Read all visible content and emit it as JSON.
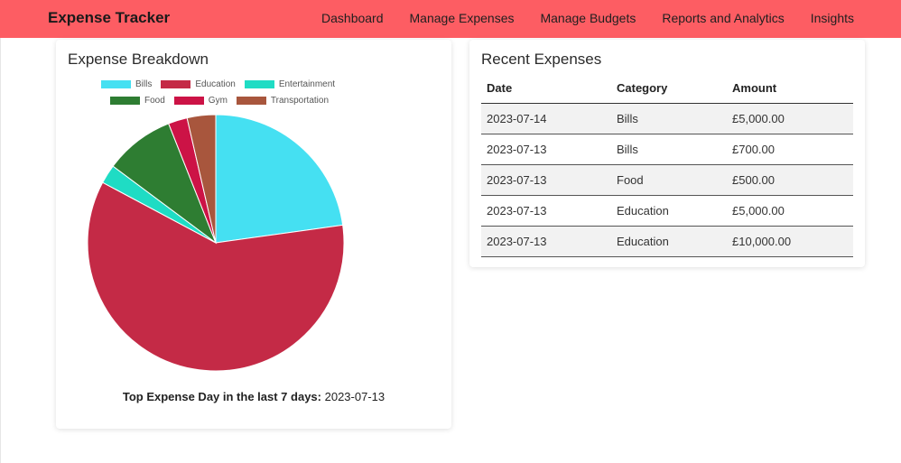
{
  "navbar": {
    "brand": "Expense Tracker",
    "links": [
      "Dashboard",
      "Manage Expenses",
      "Manage Budgets",
      "Reports and Analytics",
      "Insights"
    ],
    "background": "#fd5d63"
  },
  "breakdown": {
    "title": "Expense Breakdown",
    "top_day_label": "Top Expense Day in the last 7 days:",
    "top_day_value": "2023-07-13"
  },
  "chart_data": {
    "type": "pie",
    "title": "",
    "legend_position": "top",
    "slices": [
      {
        "label": "Bills",
        "value": 5700,
        "color": "#45e0f2"
      },
      {
        "label": "Education",
        "value": 15000,
        "color": "#c42a46"
      },
      {
        "label": "Entertainment",
        "value": 600,
        "color": "#1fdcc4"
      },
      {
        "label": "Food",
        "value": 2200,
        "color": "#2e7d32"
      },
      {
        "label": "Gym",
        "value": 600,
        "color": "#cc1346"
      },
      {
        "label": "Transportation",
        "value": 900,
        "color": "#a8563d"
      }
    ]
  },
  "recent": {
    "title": "Recent Expenses",
    "columns": [
      "Date",
      "Category",
      "Amount"
    ],
    "rows": [
      [
        "2023-07-14",
        "Bills",
        "£5,000.00"
      ],
      [
        "2023-07-13",
        "Bills",
        "£700.00"
      ],
      [
        "2023-07-13",
        "Food",
        "£500.00"
      ],
      [
        "2023-07-13",
        "Education",
        "£5,000.00"
      ],
      [
        "2023-07-13",
        "Education",
        "£10,000.00"
      ]
    ]
  }
}
